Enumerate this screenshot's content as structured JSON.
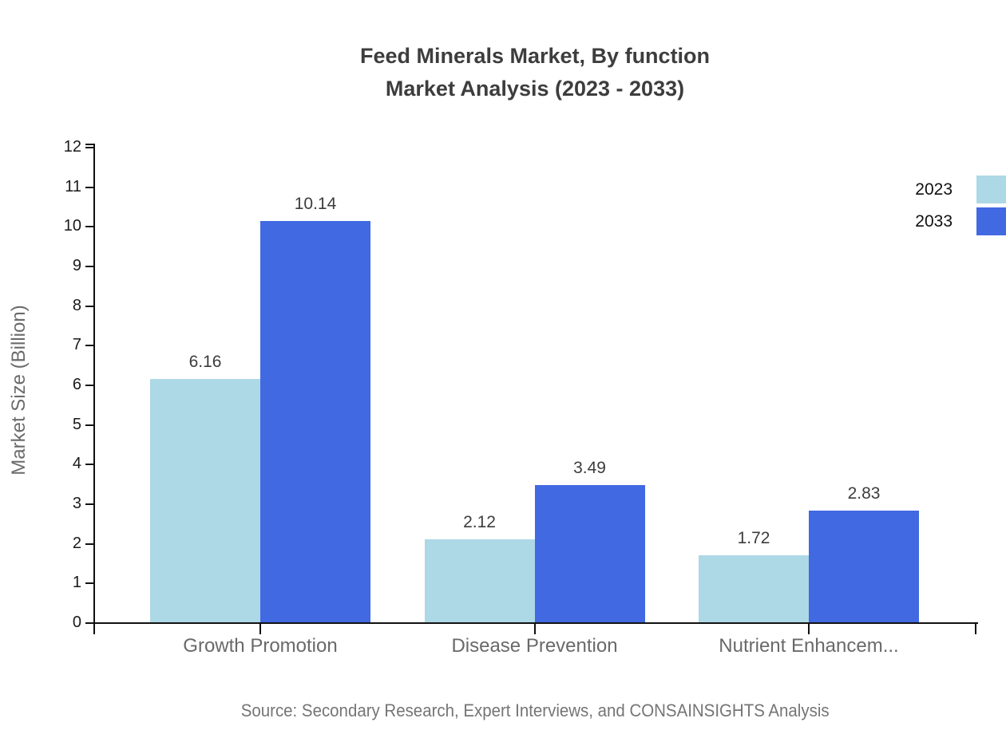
{
  "title": {
    "line1": "Feed Minerals Market, By function",
    "line2": "Market Analysis (2023 - 2033)"
  },
  "source_note": "Source: Secondary Research, Expert Interviews, and CONSAINSIGHTS Analysis",
  "chart_data": {
    "type": "bar",
    "title": "Feed Minerals Market, By function Market Analysis (2023 - 2033)",
    "categories": [
      "Growth Promotion",
      "Disease Prevention",
      "Nutrient Enhancem..."
    ],
    "series": [
      {
        "name": "2023",
        "color": "#ADD8E6",
        "values": [
          6.16,
          2.12,
          1.72
        ]
      },
      {
        "name": "2033",
        "color": "#4169E1",
        "values": [
          10.14,
          3.49,
          2.83
        ]
      }
    ],
    "xlabel": "",
    "ylabel": "Market Size (Billion)",
    "ylim": [
      0,
      12
    ],
    "ytick_step": 1,
    "grid": false,
    "legend_position": "top-right",
    "value_labels": true,
    "axis_color": "#111111",
    "tick_label_color": "#1a1a1a",
    "category_label_color": "#696969",
    "value_label_color": "#3c3c3c",
    "title_color": "#3d3d3d"
  }
}
